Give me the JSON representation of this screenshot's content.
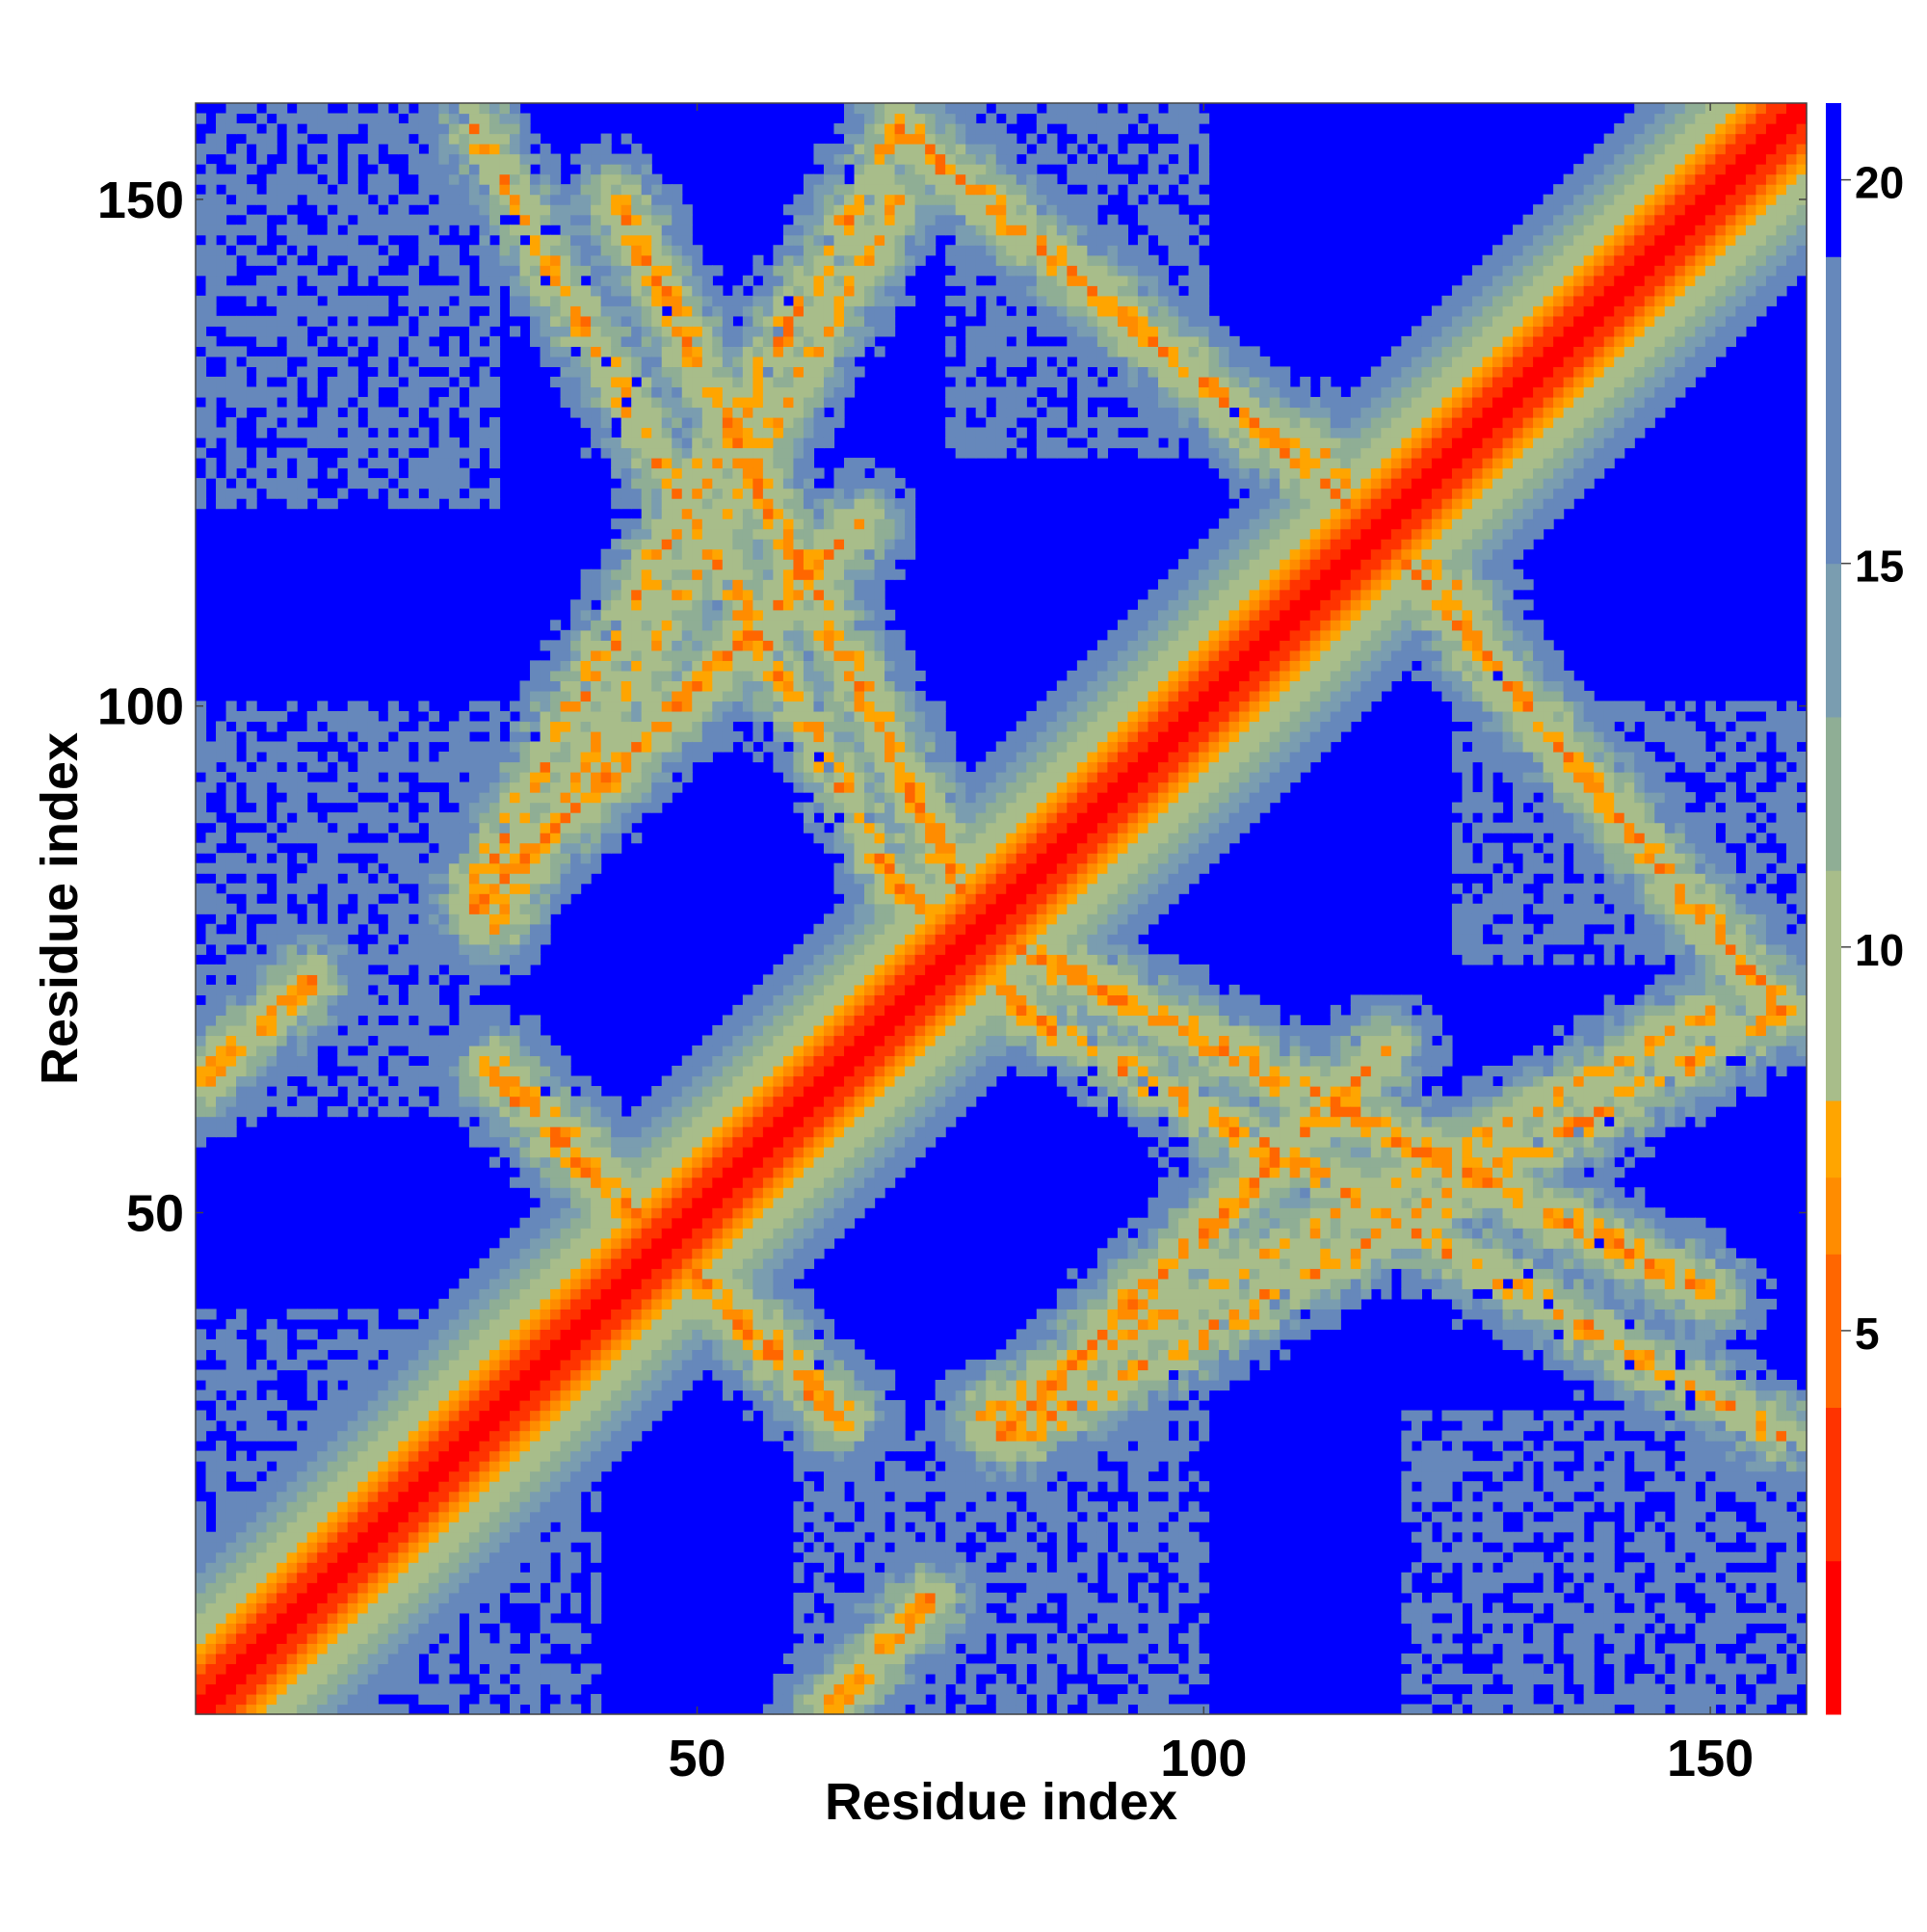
{
  "chart_data": {
    "type": "heatmap",
    "title": "",
    "xlabel": "Residue index",
    "ylabel": "Residue index",
    "n_residues": 159,
    "xlim": [
      1,
      159
    ],
    "ylim": [
      1,
      159
    ],
    "x_ticks": [
      50,
      100,
      150
    ],
    "y_ticks": [
      50,
      100,
      150
    ],
    "colorbar": {
      "range": [
        0,
        21
      ],
      "ticks": [
        5,
        10,
        15,
        20
      ],
      "colors_low_to_high": [
        "#ff0000",
        "#ff3300",
        "#ff6600",
        "#ff8c00",
        "#ffa500",
        "#a8bd8a",
        "#8fae95",
        "#7a9db0",
        "#6688bb",
        "#0000ff"
      ],
      "thresholds": [
        2,
        4,
        6,
        7,
        8,
        11,
        13,
        15,
        19
      ]
    },
    "contact_bands": [
      {
        "description": "main diagonal",
        "x_start": 1,
        "y_start": 1,
        "x_end": 159,
        "y_end": 159,
        "min_distance": 0.5,
        "width": 8
      },
      {
        "description": "antiparallel hairpin",
        "x_start": 30,
        "y_start": 64,
        "x_end": 64,
        "y_end": 30,
        "min_distance": 6.5,
        "width": 4
      },
      {
        "description": "antiparallel strand",
        "x_start": 28,
        "y_start": 157,
        "x_end": 70,
        "y_end": 82,
        "min_distance": 7,
        "width": 5
      },
      {
        "description": "antiparallel strand",
        "x_start": 82,
        "y_start": 28,
        "x_end": 157,
        "y_end": 70,
        "min_distance": 7,
        "width": 5
      },
      {
        "description": "parallel strand",
        "x_start": 28,
        "y_start": 80,
        "x_end": 66,
        "y_end": 118,
        "min_distance": 7,
        "width": 5
      },
      {
        "description": "parallel strand",
        "x_start": 80,
        "y_start": 28,
        "x_end": 118,
        "y_end": 66,
        "min_distance": 7,
        "width": 5
      },
      {
        "description": "antiparallel strand",
        "x_start": 70,
        "y_start": 82,
        "x_end": 150,
        "y_end": 42,
        "min_distance": 7,
        "width": 5
      },
      {
        "description": "antiparallel strand",
        "x_start": 82,
        "y_start": 70,
        "x_end": 42,
        "y_end": 150,
        "min_distance": 7,
        "width": 5
      },
      {
        "description": "parallel strand",
        "x_start": 70,
        "y_start": 157,
        "x_end": 126,
        "y_end": 110,
        "min_distance": 7,
        "width": 5
      },
      {
        "description": "parallel strand",
        "x_start": 157,
        "y_start": 70,
        "x_end": 110,
        "y_end": 126,
        "min_distance": 7,
        "width": 5
      },
      {
        "description": "parallel strand",
        "x_start": 78,
        "y_start": 30,
        "x_end": 150,
        "y_end": 70,
        "min_distance": 8,
        "width": 5
      },
      {
        "description": "parallel strand",
        "x_start": 30,
        "y_start": 78,
        "x_end": 70,
        "y_end": 150,
        "min_distance": 8,
        "width": 5
      },
      {
        "description": "N-terminal contact",
        "x_start": 1,
        "y_start": 63,
        "x_end": 12,
        "y_end": 73,
        "min_distance": 7,
        "width": 4
      },
      {
        "description": "N-terminal contact",
        "x_start": 63,
        "y_start": 1,
        "x_end": 73,
        "y_end": 12,
        "min_distance": 7,
        "width": 4
      }
    ],
    "diffuse_regions": [
      {
        "x": [
          1,
          38
        ],
        "y": [
          1,
          40
        ]
      },
      {
        "x": [
          1,
          30
        ],
        "y": [
          60,
          100
        ]
      },
      {
        "x": [
          60,
          100
        ],
        "y": [
          1,
          30
        ]
      },
      {
        "x": [
          1,
          30
        ],
        "y": [
          120,
          159
        ]
      },
      {
        "x": [
          120,
          159
        ],
        "y": [
          1,
          30
        ]
      },
      {
        "x": [
          125,
          159
        ],
        "y": [
          75,
          100
        ]
      },
      {
        "x": [
          75,
          100
        ],
        "y": [
          125,
          159
        ]
      }
    ]
  }
}
